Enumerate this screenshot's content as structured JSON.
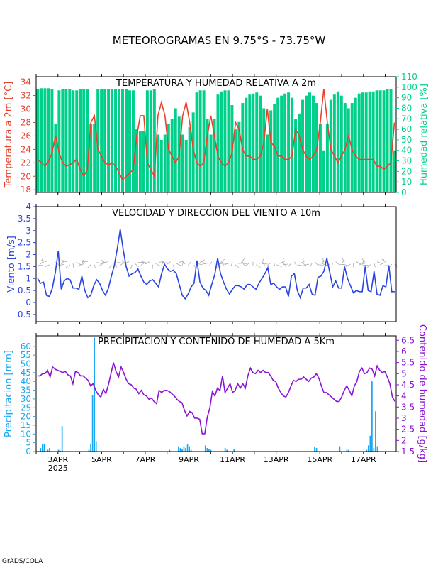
{
  "page": {
    "title": "METEOROGRAMAS EN 9.75°S - 73.75°W",
    "credit": "GrADS/COLA"
  },
  "colors": {
    "temperature": "#e8412c",
    "humidity": "#00d08a",
    "wind": "#2a45e0",
    "wind_barb": "#aaaaaa",
    "precip": "#1aa6f0",
    "moisture": "#8a14d6",
    "axis": "#000000"
  },
  "time_axis": {
    "start": "2025-04-02 00Z",
    "end": "2025-04-18 12Z",
    "step_hours": 3,
    "tick_labels": [
      "3APR",
      "5APR",
      "7APR",
      "9APR",
      "11APR",
      "13APR",
      "15APR",
      "17APR"
    ],
    "tick_dates": [
      "2025-04-03",
      "2025-04-05",
      "2025-04-07",
      "2025-04-09",
      "2025-04-11",
      "2025-04-13",
      "2025-04-15",
      "2025-04-17"
    ],
    "year_label": "2025"
  },
  "chart_data": [
    {
      "type": "line",
      "title": "TEMPERATURA Y HUMEDAD RELATIVA A 2m",
      "ylabel_left": "Temperatura a 2m [°C]",
      "ylabel_right": "Humedad relativa [%]",
      "ylim_left": [
        17.6,
        34.8
      ],
      "yticks_left": [
        "18",
        "20",
        "22",
        "24",
        "26",
        "28",
        "30",
        "32",
        "34"
      ],
      "ylim_right": [
        0,
        110
      ],
      "yticks_right": [
        "0",
        "10",
        "20",
        "30",
        "40",
        "50",
        "60",
        "70",
        "80",
        "90",
        "100",
        "110"
      ],
      "series": [
        {
          "values": [
            22.5,
            22,
            21.5,
            22.2,
            23.5,
            26,
            23.5,
            22,
            21.5,
            21.7,
            22,
            22.5,
            21,
            20,
            21,
            28,
            29,
            24,
            23,
            22,
            21.7,
            22,
            21.5,
            20.5,
            19.5,
            20,
            20.5,
            21,
            26,
            29,
            29,
            22,
            21,
            20,
            29,
            31,
            29,
            24,
            23,
            22,
            23,
            29,
            31,
            28,
            24,
            22,
            21.5,
            22,
            26,
            29,
            26,
            23,
            22,
            21.5,
            22,
            23.5,
            28,
            27,
            24,
            23,
            23,
            22.5,
            22.5,
            23,
            25,
            30,
            25,
            24.5,
            23,
            23,
            22.5,
            22.5,
            23,
            27,
            26,
            24,
            23,
            22.5,
            23,
            24,
            28,
            33,
            28,
            24,
            23,
            22,
            23,
            24,
            26,
            24,
            23,
            22.5,
            22.5,
            22.5,
            22.5,
            22.5,
            21.5,
            21.5,
            21,
            21.5,
            22,
            28
          ]
        },
        {
          "values": [
            98,
            99,
            99,
            99,
            98,
            65,
            97,
            98,
            98,
            98,
            97,
            97,
            98,
            98,
            98,
            65,
            65,
            98,
            98,
            98,
            98,
            98,
            98,
            98,
            98,
            98,
            97,
            97,
            60,
            58,
            58,
            97,
            97,
            98,
            55,
            50,
            55,
            65,
            70,
            80,
            72,
            55,
            50,
            62,
            76,
            95,
            97,
            97,
            70,
            55,
            70,
            93,
            96,
            97,
            97,
            83,
            60,
            67,
            85,
            90,
            93,
            94,
            95,
            92,
            80,
            55,
            78,
            84,
            90,
            92,
            94,
            95,
            90,
            70,
            75,
            88,
            92,
            95,
            92,
            85,
            65,
            40,
            65,
            88,
            93,
            96,
            92,
            85,
            80,
            85,
            90,
            94,
            95,
            95,
            96,
            96,
            97,
            97,
            97,
            98,
            98,
            40
          ]
        }
      ]
    },
    {
      "type": "line",
      "title": "VELOCIDAD Y DIRECCION DEL VIENTO A 10m",
      "ylabel": "Viento [m/s]",
      "ylim": [
        -0.8,
        4
      ],
      "yticks": [
        "-0.5",
        "0",
        "0.5",
        "1",
        "1.5",
        "2",
        "2.5",
        "3",
        "3.5",
        "4"
      ],
      "series": [
        {
          "values": [
            1,
            0.8,
            0.85,
            0.3,
            0.25,
            0.6,
            1.25,
            2.15,
            0.55,
            0.9,
            1,
            0.95,
            0.6,
            0.6,
            0.55,
            1.1,
            0.5,
            0.2,
            0.3,
            0.7,
            0.95,
            0.8,
            0.5,
            0.3,
            0.6,
            1.1,
            1.55,
            2.25,
            3.05,
            2.2,
            1.5,
            1.1,
            1.2,
            1.25,
            1.4,
            1.1,
            0.85,
            0.75,
            0.9,
            0.95,
            0.8,
            0.65,
            1.2,
            1.6,
            1.4,
            1.3,
            1.35,
            1.2,
            0.75,
            0.3,
            0.15,
            0.35,
            0.65,
            0.8,
            1.75,
            0.85,
            0.6,
            0.5,
            0.3,
            0.75,
            1.15,
            1.85,
            1.2,
            0.85,
            0.55,
            0.35,
            0.55,
            0.7,
            0.7,
            0.65,
            0.55,
            0.75,
            0.75,
            0.65,
            0.55,
            0.8,
            1,
            1.2,
            1.45,
            0.75,
            0.8,
            0.65,
            0.55,
            0.65,
            0.65,
            0.25,
            1.1,
            1.2,
            0.5,
            0.2,
            0.6,
            0.6,
            0.75,
            0.35,
            0.3,
            1.05,
            1.1,
            1.3,
            1.85,
            1.25,
            0.65,
            0.9,
            0.6,
            0.6,
            1.5,
            1.0,
            0.7,
            0.4,
            0.5,
            0.45,
            0.45,
            1.5,
            0.5,
            0.45,
            1.3,
            0.35,
            0.3,
            0.7,
            0.65,
            1.55,
            0.45,
            0.45
          ]
        }
      ]
    },
    {
      "type": "bar",
      "title": "PRECIPITACION Y CONTENIDO DE HUMEDAD A 5Km",
      "ylabel_left": "Precipitacion [mm]",
      "ylabel_right": "Contenido de humedad [g/kg]",
      "ylim_left": [
        0,
        66
      ],
      "yticks_left": [
        "0",
        "5",
        "10",
        "15",
        "20",
        "25",
        "30",
        "35",
        "40",
        "45",
        "50",
        "55",
        "60"
      ],
      "ylim_right": [
        1.5,
        6.7
      ],
      "yticks_right": [
        "1.5",
        "2",
        "2.5",
        "3",
        "3.5",
        "4",
        "4.5",
        "5",
        "5.5",
        "6",
        "6.5"
      ],
      "series": [
        {
          "name": "precip",
          "values": [
            0,
            0,
            2,
            4,
            4.5,
            0,
            1,
            2,
            0,
            0,
            0,
            0,
            1,
            0.5,
            14.5,
            0,
            0,
            0,
            0,
            0,
            0,
            0,
            0,
            0,
            0,
            0,
            0,
            0,
            0,
            1,
            4.5,
            32,
            65,
            6,
            0,
            0,
            0,
            0,
            0,
            0,
            0,
            0,
            0,
            0,
            0,
            0,
            0,
            0,
            0,
            0,
            0,
            0,
            0,
            0,
            0,
            0,
            0,
            0,
            0,
            0,
            0,
            0,
            0,
            0,
            0,
            0,
            0,
            0,
            0,
            0,
            0,
            0,
            0,
            0,
            1,
            0,
            0,
            0,
            0,
            3,
            2,
            1.5,
            3,
            2,
            4,
            3,
            1,
            0,
            0,
            0,
            0,
            0,
            0,
            0,
            3.5,
            2,
            1.5,
            1,
            0,
            0,
            0,
            0,
            0,
            0,
            0,
            2,
            1,
            0,
            0,
            0,
            1.5,
            0,
            0,
            0,
            0,
            0,
            0,
            0,
            0,
            0,
            0,
            0,
            0,
            0,
            0,
            0,
            0,
            0,
            0,
            0,
            0,
            0,
            0,
            0,
            0,
            0,
            0,
            0,
            0,
            0,
            0,
            0,
            0,
            0,
            0,
            0,
            0,
            0,
            0,
            0,
            0,
            0,
            0,
            0,
            0,
            2.5,
            2,
            0,
            0,
            0,
            0,
            0,
            0,
            0,
            0,
            0,
            0,
            0,
            0,
            3,
            0,
            0,
            0,
            1,
            1,
            0,
            0,
            0,
            0,
            0,
            0,
            0,
            0,
            0,
            1,
            3.5,
            9,
            40,
            2,
            23,
            3,
            0,
            0,
            0,
            0,
            0,
            0,
            0,
            0,
            0,
            0
          ]
        },
        {
          "name": "moisture",
          "values": [
            4.9,
            4.9,
            5.0,
            5.0,
            5.15,
            4.85,
            5.3,
            5.2,
            5.15,
            5.1,
            5.05,
            5.1,
            4.95,
            4.9,
            4.55,
            5.1,
            5.05,
            4.9,
            4.9,
            4.8,
            4.7,
            4.45,
            4.55,
            4.25,
            4.05,
            3.95,
            4.3,
            4.1,
            4.5,
            5.0,
            5.5,
            5.1,
            4.85,
            5.3,
            5.05,
            4.75,
            4.55,
            4.5,
            4.35,
            4.3,
            4.1,
            4.25,
            4.05,
            4.0,
            3.85,
            3.9,
            3.75,
            3.65,
            4.25,
            4.15,
            4.25,
            4.25,
            4.2,
            4.1,
            4.0,
            3.85,
            3.75,
            3.7,
            3.35,
            3.1,
            3.3,
            3.25,
            3.0,
            3.0,
            2.95,
            2.3,
            2.3,
            3.05,
            3.45,
            4.2,
            4.0,
            4.35,
            4.25,
            4.9,
            4.15,
            4.35,
            4.55,
            4.15,
            4.25,
            4.55,
            4.35,
            4.55,
            4.35,
            4.9,
            5.25,
            5.05,
            5.0,
            5.15,
            5.05,
            5.15,
            5.05,
            5.05,
            4.9,
            4.7,
            4.65,
            4.35,
            4.15,
            4.0,
            3.95,
            4.15,
            4.45,
            4.7,
            4.65,
            4.75,
            4.75,
            4.85,
            4.75,
            4.65,
            4.8,
            4.85,
            5.0,
            4.8,
            4.45,
            4.15,
            4.15,
            4.05,
            3.95,
            3.85,
            3.75,
            3.75,
            3.95,
            4.25,
            4.45,
            4.25,
            4.0,
            4.45,
            4.65,
            5.1,
            5.25,
            5.0,
            5.05,
            5.25,
            5.2,
            4.9,
            5.35,
            5.15,
            5.05,
            5.1,
            4.85,
            4.55,
            3.95,
            3.75
          ]
        }
      ]
    }
  ]
}
